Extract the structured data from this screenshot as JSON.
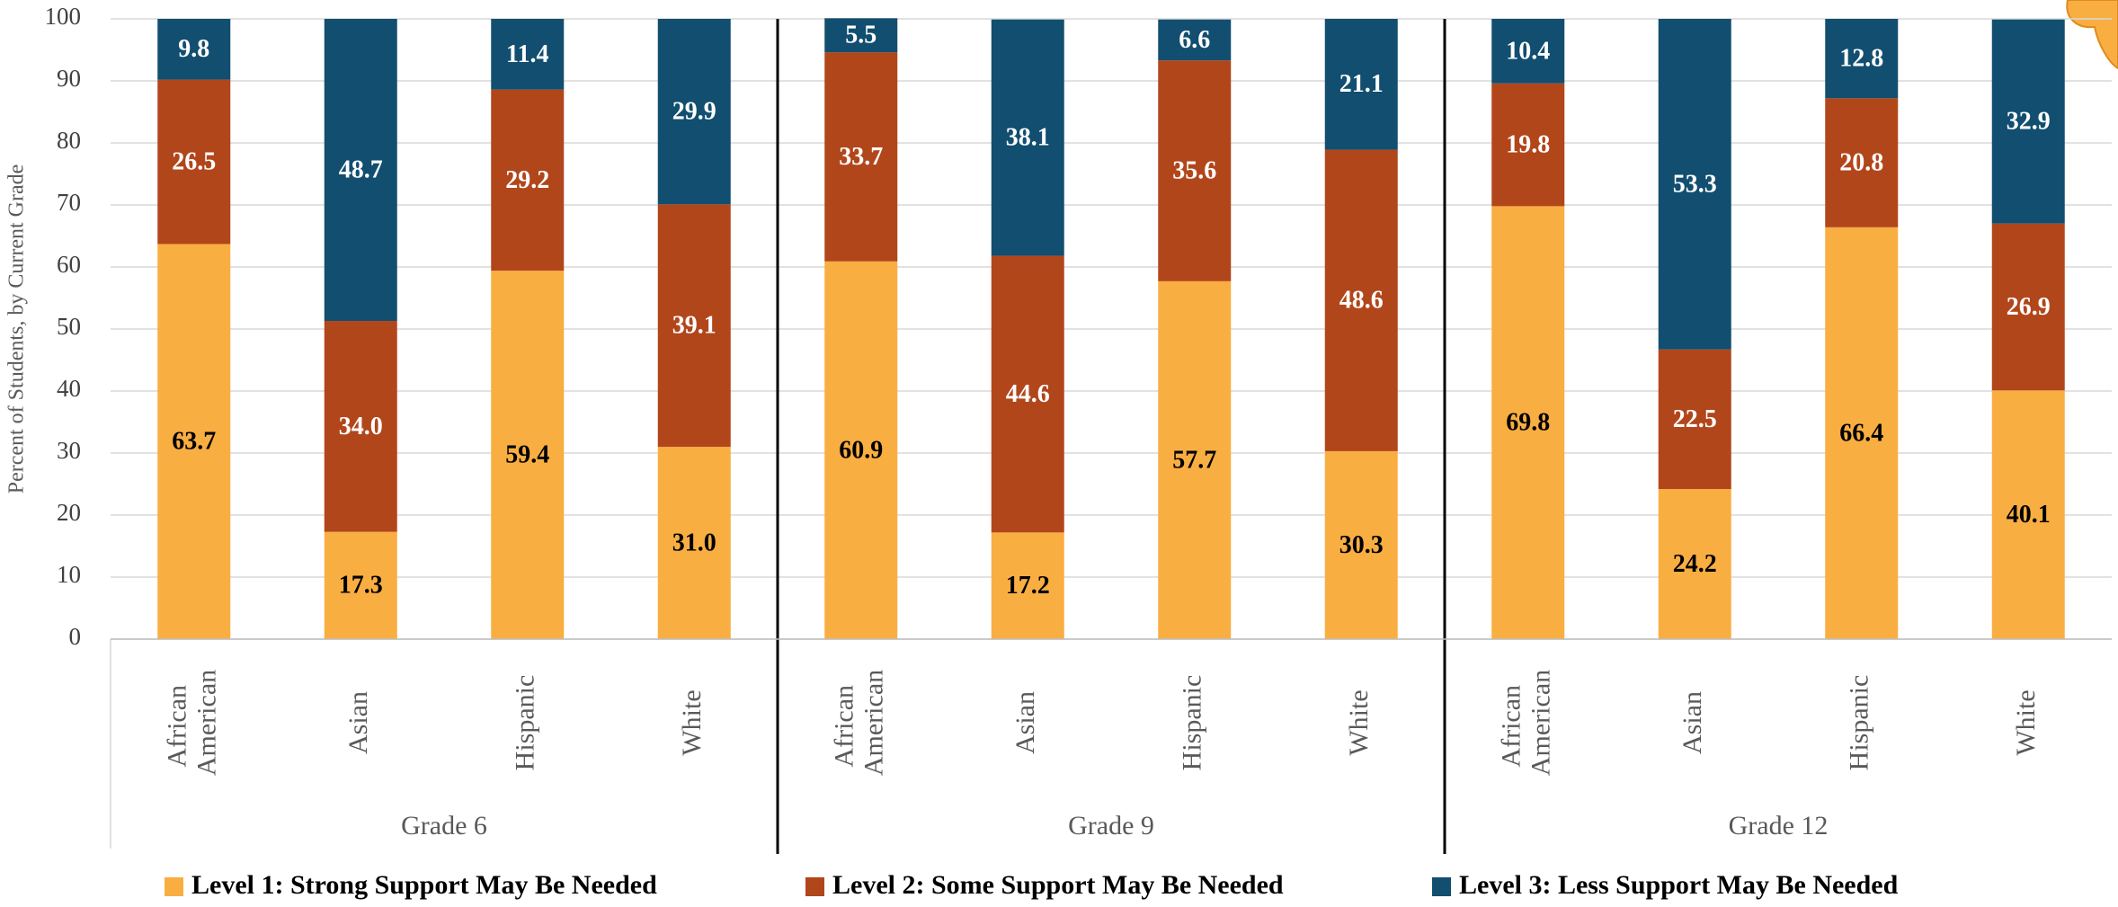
{
  "chart_data": {
    "type": "bar",
    "stacked": true,
    "y_label": "Percent of Students, by Current Grade",
    "groups": [
      "Grade 6",
      "Grade 9",
      "Grade 12"
    ],
    "categories": [
      "African American",
      "Asian",
      "Hispanic",
      "White",
      "African American",
      "Asian",
      "Hispanic",
      "White",
      "African American",
      "Asian",
      "Hispanic",
      "White"
    ],
    "series": [
      {
        "name": "Level 1: Strong Support May Be Needed",
        "color": "#f9ae42",
        "label_color": "#000000",
        "values": [
          63.7,
          17.3,
          59.4,
          31.0,
          60.9,
          17.2,
          57.7,
          30.3,
          69.8,
          24.2,
          66.4,
          40.1
        ],
        "value_labels": [
          "63.7",
          "17.3",
          "59.4",
          "31.0",
          "60.9",
          "17.2",
          "57.7",
          "30.3",
          "69.8",
          "24.2",
          "66.4",
          "40.1"
        ]
      },
      {
        "name": "Level 2: Some Support May Be Needed",
        "color": "#b2461b",
        "label_color": "#ffffff",
        "values": [
          26.5,
          34.0,
          29.2,
          39.1,
          33.7,
          44.6,
          35.6,
          48.6,
          19.8,
          22.5,
          20.8,
          26.9
        ],
        "value_labels": [
          "26.5",
          "34.0",
          "29.2",
          "39.1",
          "33.7",
          "44.6",
          "35.6",
          "48.6",
          "19.8",
          "22.5",
          "20.8",
          "26.9"
        ]
      },
      {
        "name": "Level 3: Less Support May Be Needed",
        "color": "#124e6f",
        "label_color": "#ffffff",
        "values": [
          9.8,
          48.7,
          11.4,
          29.9,
          5.5,
          38.1,
          6.6,
          21.1,
          10.4,
          53.3,
          12.8,
          32.9
        ],
        "value_labels": [
          "9.8",
          "48.7",
          "11.4",
          "29.9",
          "5.5",
          "38.1",
          "6.6",
          "21.1",
          "10.4",
          "53.3",
          "12.8",
          "32.9"
        ]
      }
    ],
    "ylim": [
      0,
      100
    ],
    "yticks": [
      0,
      10,
      20,
      30,
      40,
      50,
      60,
      70,
      80,
      90,
      100
    ],
    "grid": true
  }
}
